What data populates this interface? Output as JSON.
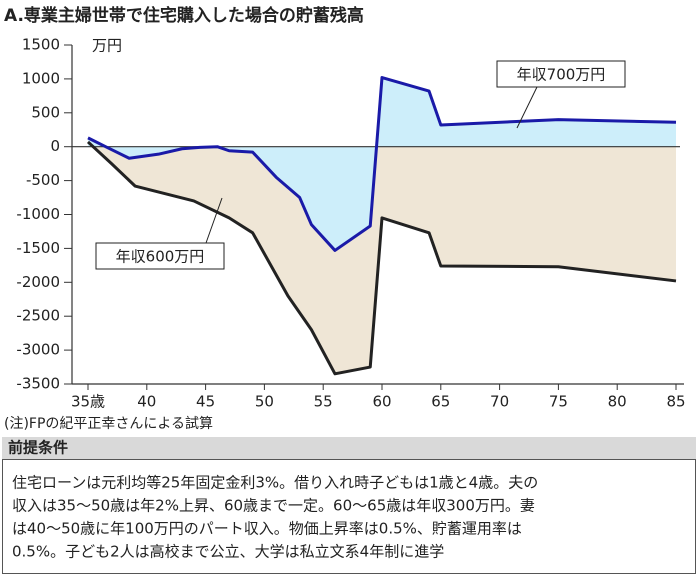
{
  "chart_data": {
    "type": "area-line",
    "title": "A.専業主婦世帯で住宅購入した場合の貯蓄残高",
    "y_unit": "万円",
    "xlim": [
      35,
      85
    ],
    "xticks": [
      {
        "value": 35,
        "label": "35歳"
      },
      40,
      45,
      50,
      55,
      60,
      65,
      70,
      75,
      80,
      85
    ],
    "ylim": [
      -3500,
      1500
    ],
    "yticks": [
      1500,
      1000,
      500,
      0,
      -500,
      -1000,
      -1500,
      -2000,
      -2500,
      -3000,
      -3500
    ],
    "series": [
      {
        "name": "年収600万円",
        "color": "#222222",
        "fill": "#efe6d6",
        "x": [
          35,
          37,
          39,
          44,
          47,
          49,
          52,
          54,
          56,
          59,
          60,
          64,
          65,
          75,
          85
        ],
        "values": [
          70,
          -250,
          -580,
          -800,
          -1050,
          -1270,
          -2200,
          -2700,
          -3350,
          -3250,
          -1050,
          -1270,
          -1760,
          -1770,
          -1980
        ]
      },
      {
        "name": "年収700万円",
        "color": "#1a1aa8",
        "fill": "#cdeefa",
        "x": [
          35,
          36.5,
          38.5,
          41,
          43,
          44.5,
          46,
          47,
          49,
          51,
          53,
          54,
          56,
          59,
          60,
          64,
          65,
          75,
          85
        ],
        "values": [
          130,
          0,
          -170,
          -110,
          -30,
          -10,
          0,
          -60,
          -80,
          -450,
          -750,
          -1150,
          -1530,
          -1170,
          1020,
          820,
          320,
          400,
          360
        ]
      }
    ]
  },
  "note": "(注)FPの紀平正幸さんによる試算",
  "conditions": {
    "title": "前提条件",
    "lines": [
      "住宅ローンは元利均等25年固定金利3%。借り入れ時子どもは1歳と4歳。夫の",
      "収入は35～50歳は年2%上昇、60歳まで一定。60～65歳は年収300万円。妻",
      "は40～50歳に年100万円のパート収入。物価上昇率は0.5%、貯蓄運用率は",
      "0.5%。子ども2人は高校まで公立、大学は私立文系4年制に進学"
    ]
  }
}
